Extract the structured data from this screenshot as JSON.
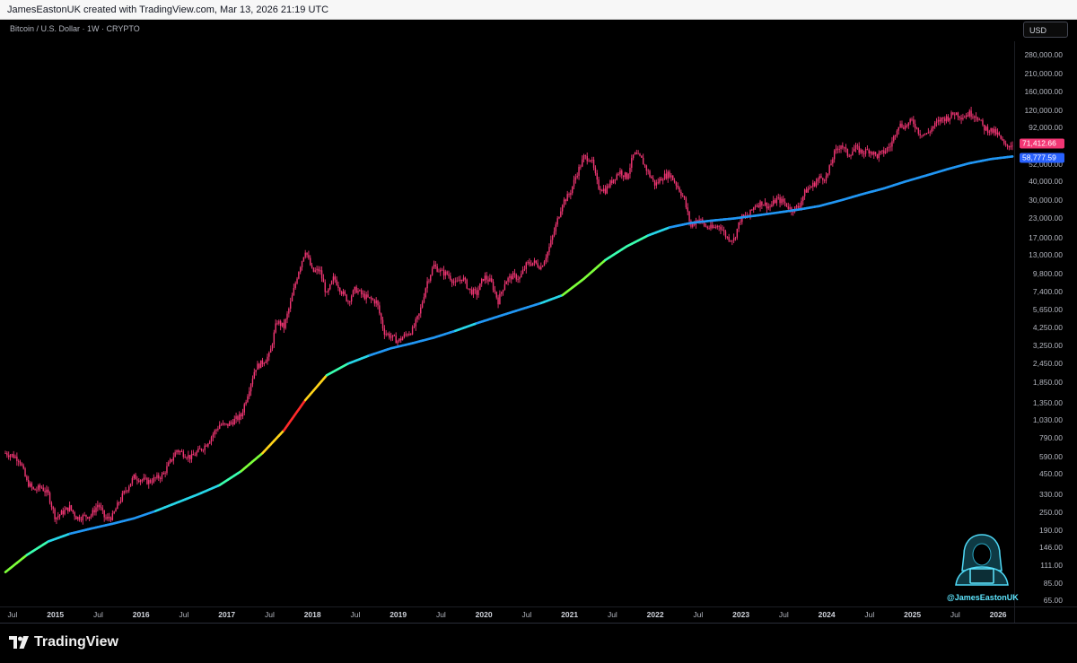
{
  "header": {
    "attribution": "JamesEastonUK created with TradingView.com, Mar 13, 2026 21:19 UTC",
    "symbol_title": "Bitcoin / U.S. Dollar · 1W · CRYPTO",
    "currency": "USD"
  },
  "y_axis_labels": [
    "280,000.00",
    "210,000.00",
    "160,000.00",
    "120,000.00",
    "92,000.00",
    "52,000.00",
    "40,000.00",
    "30,000.00",
    "23,000.00",
    "17,000.00",
    "13,000.00",
    "9,800.00",
    "7,400.00",
    "5,650.00",
    "4,250.00",
    "3,250.00",
    "2,450.00",
    "1,850.00",
    "1,350.00",
    "1,030.00",
    "790.00",
    "590.00",
    "450.00",
    "330.00",
    "250.00",
    "190.00",
    "146.00",
    "111.00",
    "85.00",
    "65.00"
  ],
  "x_axis_labels": [
    "Jul",
    "2015",
    "Jul",
    "2016",
    "Jul",
    "2017",
    "Jul",
    "2018",
    "Jul",
    "2019",
    "Jul",
    "2020",
    "Jul",
    "2021",
    "Jul",
    "2022",
    "Jul",
    "2023",
    "Jul",
    "2024",
    "Jul",
    "2025",
    "Jul",
    "2026"
  ],
  "price_tags": {
    "last_price": "71,412.66",
    "ma_value": "58,777.59",
    "last_color": "#f23674",
    "ma_color": "#2962ff"
  },
  "footer": {
    "brand": "TradingView"
  },
  "watermark": {
    "handle": "@JamesEastonUK",
    "icon": "hooded-hacker-icon"
  },
  "chart_data": {
    "type": "candlestick-line",
    "scale": "log",
    "ylim": [
      65,
      280000
    ],
    "x_range": [
      "2014-06",
      "2026-03"
    ],
    "series": [
      {
        "name": "BTC weekly price",
        "color": "#f23674",
        "points": [
          {
            "x": "2014-06",
            "y": 620
          },
          {
            "x": "2014-07",
            "y": 600
          },
          {
            "x": "2014-08",
            "y": 560
          },
          {
            "x": "2014-09",
            "y": 400
          },
          {
            "x": "2014-10",
            "y": 350
          },
          {
            "x": "2014-11",
            "y": 370
          },
          {
            "x": "2014-12",
            "y": 330
          },
          {
            "x": "2015-01",
            "y": 230
          },
          {
            "x": "2015-02",
            "y": 250
          },
          {
            "x": "2015-03",
            "y": 270
          },
          {
            "x": "2015-04",
            "y": 230
          },
          {
            "x": "2015-05",
            "y": 235
          },
          {
            "x": "2015-06",
            "y": 240
          },
          {
            "x": "2015-07",
            "y": 285
          },
          {
            "x": "2015-08",
            "y": 225
          },
          {
            "x": "2015-09",
            "y": 235
          },
          {
            "x": "2015-10",
            "y": 300
          },
          {
            "x": "2015-11",
            "y": 360
          },
          {
            "x": "2015-12",
            "y": 430
          },
          {
            "x": "2016-02",
            "y": 400
          },
          {
            "x": "2016-04",
            "y": 440
          },
          {
            "x": "2016-06",
            "y": 650
          },
          {
            "x": "2016-08",
            "y": 580
          },
          {
            "x": "2016-10",
            "y": 700
          },
          {
            "x": "2016-12",
            "y": 960
          },
          {
            "x": "2017-01",
            "y": 950
          },
          {
            "x": "2017-03",
            "y": 1100
          },
          {
            "x": "2017-05",
            "y": 2300
          },
          {
            "x": "2017-06",
            "y": 2500
          },
          {
            "x": "2017-07",
            "y": 2800
          },
          {
            "x": "2017-08",
            "y": 4700
          },
          {
            "x": "2017-09",
            "y": 4300
          },
          {
            "x": "2017-10",
            "y": 6400
          },
          {
            "x": "2017-11",
            "y": 10000
          },
          {
            "x": "2017-12",
            "y": 14000
          },
          {
            "x": "2018-01",
            "y": 10000
          },
          {
            "x": "2018-02",
            "y": 10300
          },
          {
            "x": "2018-03",
            "y": 7000
          },
          {
            "x": "2018-04",
            "y": 9200
          },
          {
            "x": "2018-05",
            "y": 7500
          },
          {
            "x": "2018-06",
            "y": 6400
          },
          {
            "x": "2018-07",
            "y": 7700
          },
          {
            "x": "2018-08",
            "y": 7000
          },
          {
            "x": "2018-09",
            "y": 6600
          },
          {
            "x": "2018-10",
            "y": 6300
          },
          {
            "x": "2018-11",
            "y": 4000
          },
          {
            "x": "2018-12",
            "y": 3700
          },
          {
            "x": "2019-01",
            "y": 3450
          },
          {
            "x": "2019-02",
            "y": 3800
          },
          {
            "x": "2019-03",
            "y": 4100
          },
          {
            "x": "2019-04",
            "y": 5300
          },
          {
            "x": "2019-05",
            "y": 8500
          },
          {
            "x": "2019-06",
            "y": 11000
          },
          {
            "x": "2019-07",
            "y": 10000
          },
          {
            "x": "2019-08",
            "y": 9600
          },
          {
            "x": "2019-09",
            "y": 8300
          },
          {
            "x": "2019-10",
            "y": 9200
          },
          {
            "x": "2019-11",
            "y": 7500
          },
          {
            "x": "2019-12",
            "y": 7200
          },
          {
            "x": "2020-01",
            "y": 9300
          },
          {
            "x": "2020-02",
            "y": 8600
          },
          {
            "x": "2020-03",
            "y": 6400
          },
          {
            "x": "2020-04",
            "y": 8700
          },
          {
            "x": "2020-05",
            "y": 9400
          },
          {
            "x": "2020-06",
            "y": 9100
          },
          {
            "x": "2020-07",
            "y": 11300
          },
          {
            "x": "2020-08",
            "y": 11600
          },
          {
            "x": "2020-09",
            "y": 10800
          },
          {
            "x": "2020-10",
            "y": 13800
          },
          {
            "x": "2020-11",
            "y": 19700
          },
          {
            "x": "2020-12",
            "y": 29000
          },
          {
            "x": "2021-01",
            "y": 33000
          },
          {
            "x": "2021-02",
            "y": 45000
          },
          {
            "x": "2021-03",
            "y": 58000
          },
          {
            "x": "2021-04",
            "y": 57000
          },
          {
            "x": "2021-05",
            "y": 37000
          },
          {
            "x": "2021-06",
            "y": 35000
          },
          {
            "x": "2021-07",
            "y": 41000
          },
          {
            "x": "2021-08",
            "y": 47000
          },
          {
            "x": "2021-09",
            "y": 43000
          },
          {
            "x": "2021-10",
            "y": 61000
          },
          {
            "x": "2021-11",
            "y": 57000
          },
          {
            "x": "2021-12",
            "y": 46000
          },
          {
            "x": "2022-01",
            "y": 38000
          },
          {
            "x": "2022-02",
            "y": 43000
          },
          {
            "x": "2022-03",
            "y": 45000
          },
          {
            "x": "2022-04",
            "y": 38000
          },
          {
            "x": "2022-05",
            "y": 31000
          },
          {
            "x": "2022-06",
            "y": 20000
          },
          {
            "x": "2022-07",
            "y": 23000
          },
          {
            "x": "2022-08",
            "y": 20000
          },
          {
            "x": "2022-09",
            "y": 19500
          },
          {
            "x": "2022-10",
            "y": 20500
          },
          {
            "x": "2022-11",
            "y": 17000
          },
          {
            "x": "2022-12",
            "y": 16500
          },
          {
            "x": "2023-01",
            "y": 23000
          },
          {
            "x": "2023-02",
            "y": 23500
          },
          {
            "x": "2023-03",
            "y": 28000
          },
          {
            "x": "2023-04",
            "y": 29000
          },
          {
            "x": "2023-05",
            "y": 27000
          },
          {
            "x": "2023-06",
            "y": 30500
          },
          {
            "x": "2023-07",
            "y": 29200
          },
          {
            "x": "2023-08",
            "y": 26000
          },
          {
            "x": "2023-09",
            "y": 27000
          },
          {
            "x": "2023-10",
            "y": 34500
          },
          {
            "x": "2023-11",
            "y": 37700
          },
          {
            "x": "2023-12",
            "y": 42300
          },
          {
            "x": "2024-01",
            "y": 42600
          },
          {
            "x": "2024-02",
            "y": 61000
          },
          {
            "x": "2024-03",
            "y": 71000
          },
          {
            "x": "2024-04",
            "y": 60000
          },
          {
            "x": "2024-05",
            "y": 67000
          },
          {
            "x": "2024-06",
            "y": 62700
          },
          {
            "x": "2024-07",
            "y": 65000
          },
          {
            "x": "2024-08",
            "y": 59000
          },
          {
            "x": "2024-09",
            "y": 63000
          },
          {
            "x": "2024-10",
            "y": 70000
          },
          {
            "x": "2024-11",
            "y": 96000
          },
          {
            "x": "2024-12",
            "y": 93500
          },
          {
            "x": "2025-01",
            "y": 102000
          },
          {
            "x": "2025-02",
            "y": 84000
          },
          {
            "x": "2025-03",
            "y": 82500
          },
          {
            "x": "2025-04",
            "y": 94000
          },
          {
            "x": "2025-05",
            "y": 104000
          },
          {
            "x": "2025-06",
            "y": 107000
          },
          {
            "x": "2025-07",
            "y": 115000
          },
          {
            "x": "2025-08",
            "y": 108000
          },
          {
            "x": "2025-09",
            "y": 114000
          },
          {
            "x": "2025-10",
            "y": 110000
          },
          {
            "x": "2025-11",
            "y": 91000
          },
          {
            "x": "2025-12",
            "y": 88000
          },
          {
            "x": "2026-01",
            "y": 82000
          },
          {
            "x": "2026-02",
            "y": 68000
          },
          {
            "x": "2026-03",
            "y": 71412.66
          }
        ]
      },
      {
        "name": "Moving average",
        "color": "#2962ff",
        "points": [
          {
            "x": "2014-06",
            "y": 100
          },
          {
            "x": "2014-09",
            "y": 130
          },
          {
            "x": "2014-12",
            "y": 160
          },
          {
            "x": "2015-03",
            "y": 180
          },
          {
            "x": "2015-06",
            "y": 195
          },
          {
            "x": "2015-09",
            "y": 210
          },
          {
            "x": "2015-12",
            "y": 228
          },
          {
            "x": "2016-03",
            "y": 255
          },
          {
            "x": "2016-06",
            "y": 290
          },
          {
            "x": "2016-09",
            "y": 330
          },
          {
            "x": "2016-12",
            "y": 380
          },
          {
            "x": "2017-03",
            "y": 470
          },
          {
            "x": "2017-06",
            "y": 620
          },
          {
            "x": "2017-09",
            "y": 880
          },
          {
            "x": "2017-12",
            "y": 1400
          },
          {
            "x": "2018-03",
            "y": 2050
          },
          {
            "x": "2018-06",
            "y": 2450
          },
          {
            "x": "2018-09",
            "y": 2780
          },
          {
            "x": "2018-12",
            "y": 3100
          },
          {
            "x": "2019-03",
            "y": 3350
          },
          {
            "x": "2019-06",
            "y": 3650
          },
          {
            "x": "2019-09",
            "y": 4050
          },
          {
            "x": "2019-12",
            "y": 4550
          },
          {
            "x": "2020-03",
            "y": 5050
          },
          {
            "x": "2020-06",
            "y": 5600
          },
          {
            "x": "2020-09",
            "y": 6200
          },
          {
            "x": "2020-12",
            "y": 7000
          },
          {
            "x": "2021-03",
            "y": 9000
          },
          {
            "x": "2021-06",
            "y": 12000
          },
          {
            "x": "2021-09",
            "y": 14800
          },
          {
            "x": "2021-12",
            "y": 17500
          },
          {
            "x": "2022-03",
            "y": 19800
          },
          {
            "x": "2022-06",
            "y": 21200
          },
          {
            "x": "2022-09",
            "y": 22000
          },
          {
            "x": "2022-12",
            "y": 22700
          },
          {
            "x": "2023-03",
            "y": 23700
          },
          {
            "x": "2023-06",
            "y": 24800
          },
          {
            "x": "2023-09",
            "y": 26000
          },
          {
            "x": "2023-12",
            "y": 27500
          },
          {
            "x": "2024-03",
            "y": 30000
          },
          {
            "x": "2024-06",
            "y": 33000
          },
          {
            "x": "2024-09",
            "y": 36000
          },
          {
            "x": "2024-12",
            "y": 40000
          },
          {
            "x": "2025-03",
            "y": 44000
          },
          {
            "x": "2025-06",
            "y": 48500
          },
          {
            "x": "2025-09",
            "y": 53000
          },
          {
            "x": "2025-12",
            "y": 56500
          },
          {
            "x": "2026-03",
            "y": 58777.59
          }
        ]
      }
    ]
  }
}
